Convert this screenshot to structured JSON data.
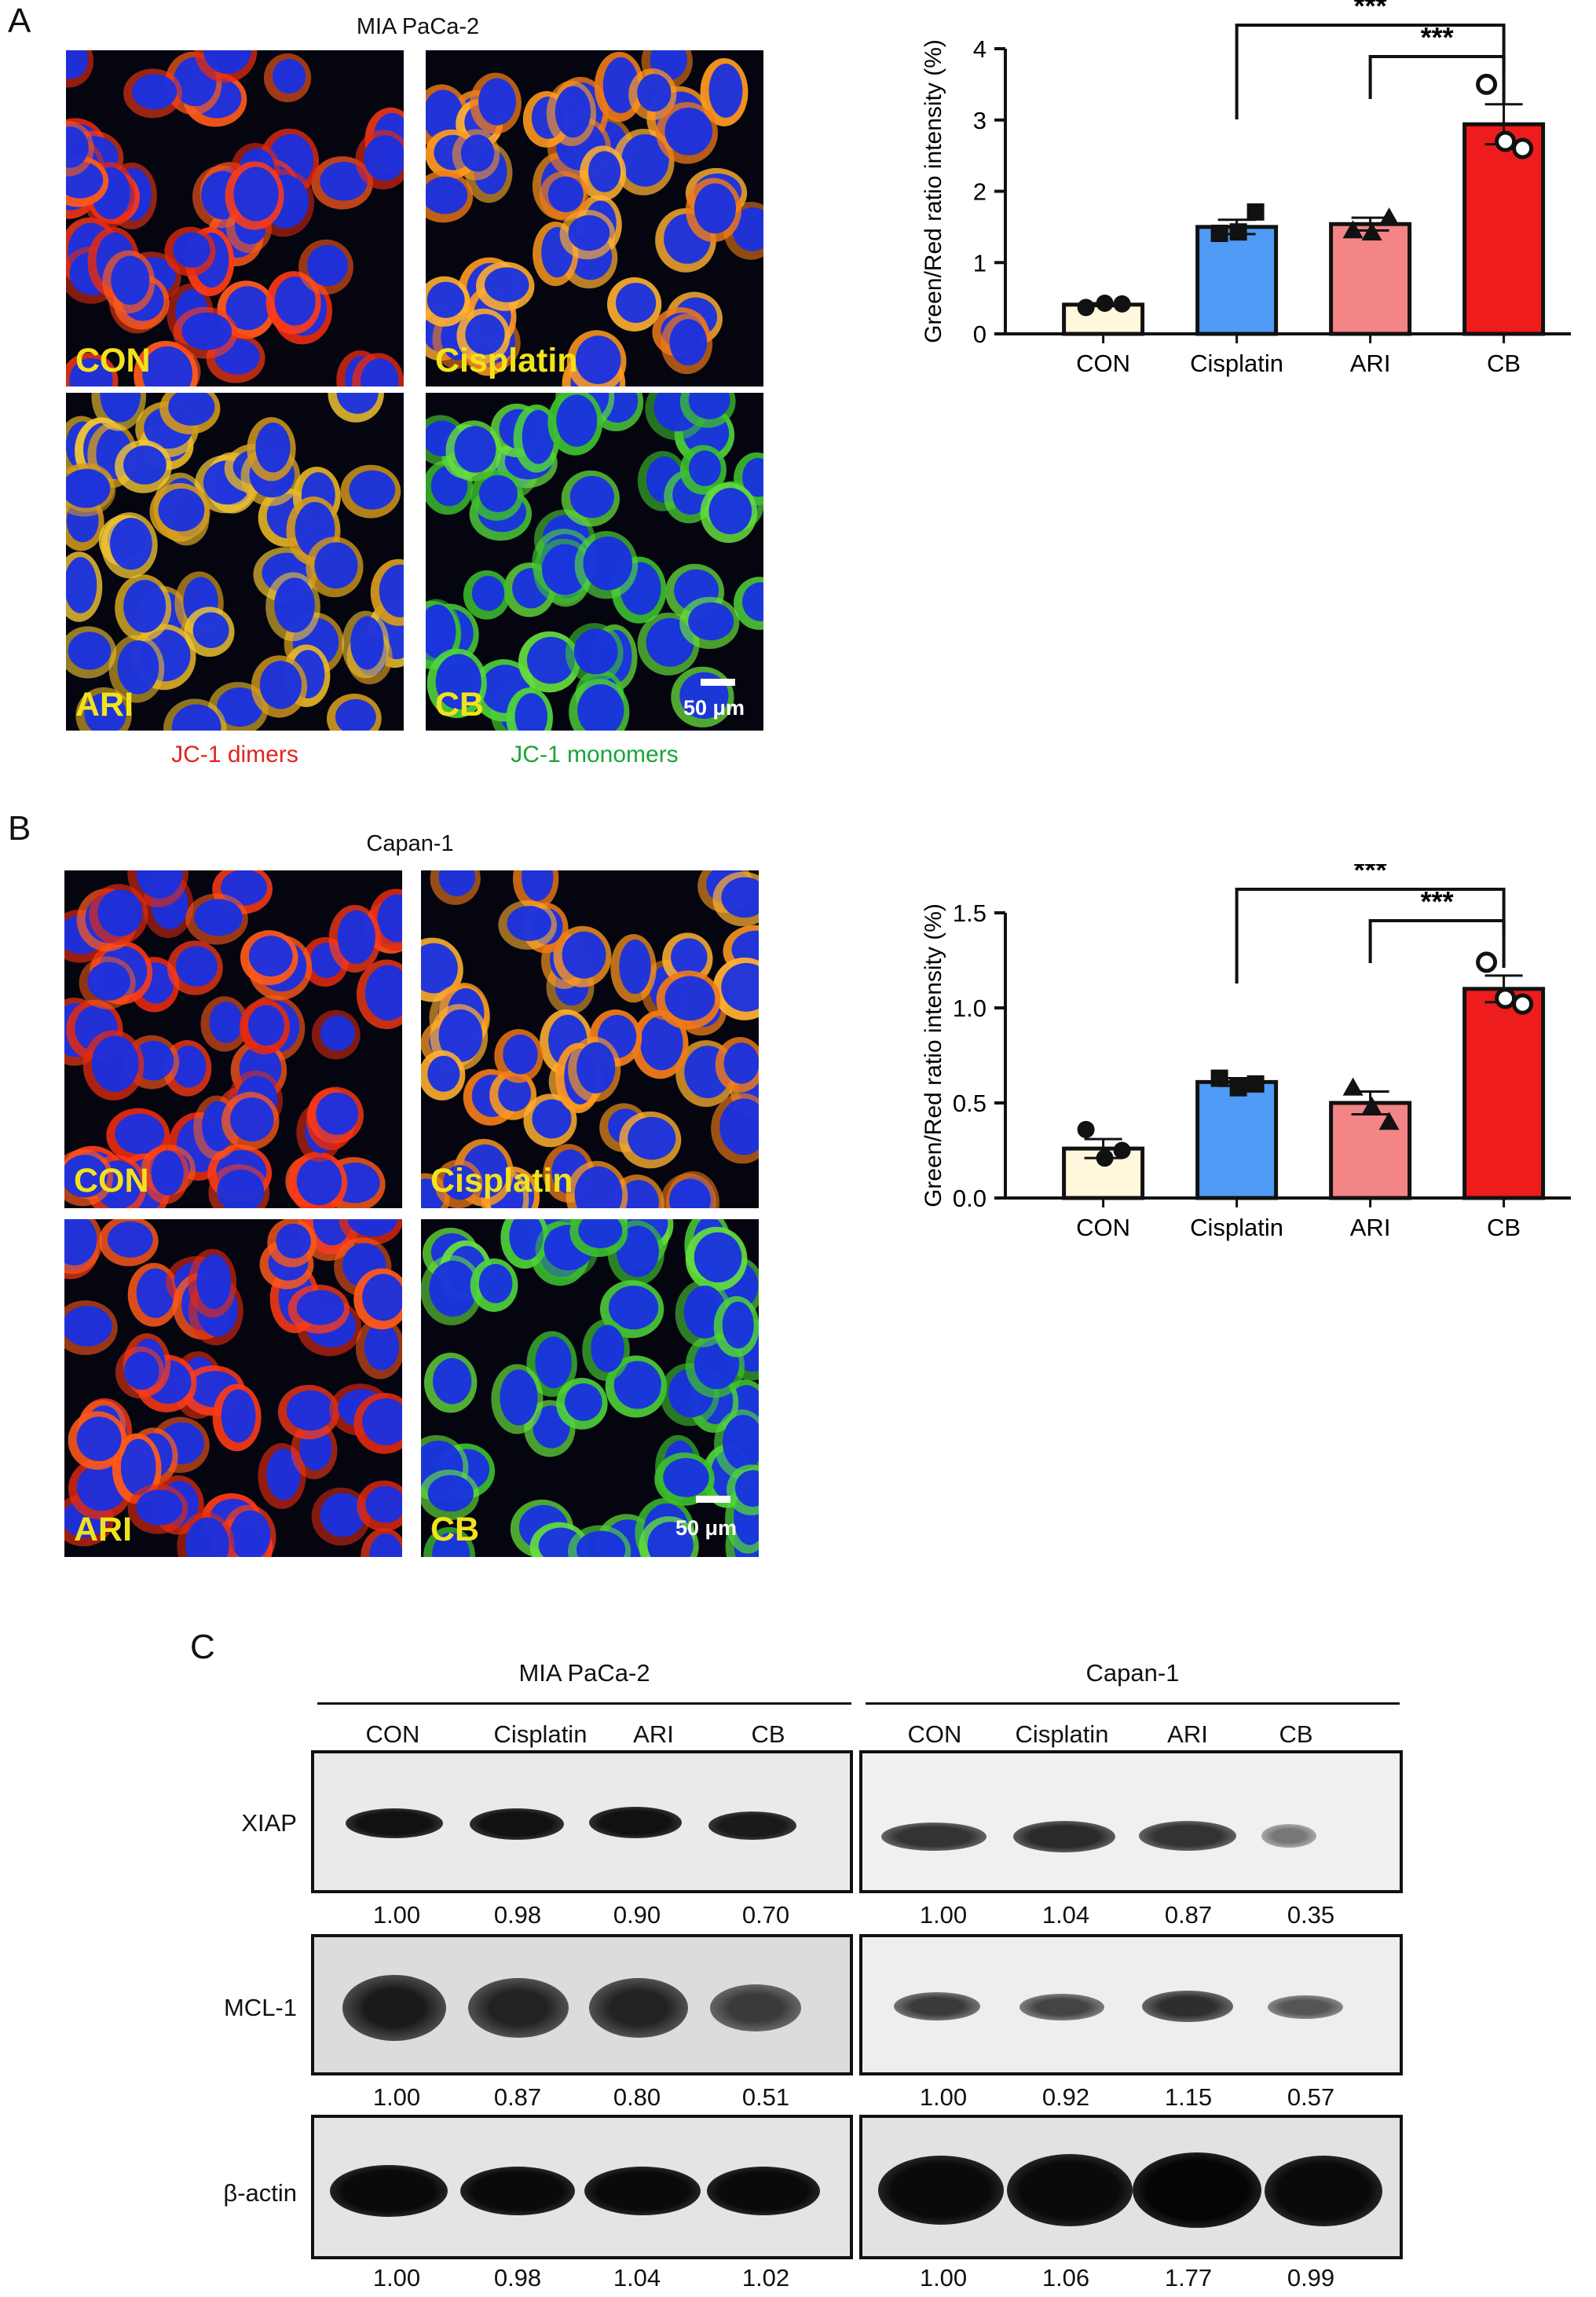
{
  "panel_a": {
    "letter": "A",
    "cell_line": "MIA PaCa-2",
    "images": [
      {
        "label": "CON",
        "stain": "red"
      },
      {
        "label": "Cisplatin",
        "stain": "orange"
      },
      {
        "label": "ARI",
        "stain": "yellow"
      },
      {
        "label": "CB",
        "stain": "green"
      }
    ],
    "scale_bar": "50 μm",
    "legend_dimers": "JC-1 dimers",
    "legend_monomers": "JC-1 monomers"
  },
  "panel_b": {
    "letter": "B",
    "cell_line": "Capan-1",
    "images": [
      {
        "label": "CON",
        "stain": "red"
      },
      {
        "label": "Cisplatin",
        "stain": "orange"
      },
      {
        "label": "ARI",
        "stain": "red"
      },
      {
        "label": "CB",
        "stain": "green"
      }
    ],
    "scale_bar": "50 μm"
  },
  "chart_data": [
    {
      "type": "bar",
      "ylabel": "Green/Red ratio intensity (%)",
      "categories": [
        "CON",
        "Cisplatin",
        "ARI",
        "CB"
      ],
      "values": [
        0.41,
        1.5,
        1.54,
        2.94
      ],
      "errors": [
        0.02,
        0.1,
        0.09,
        0.28
      ],
      "points": [
        [
          0.37,
          0.43,
          0.42
        ],
        [
          1.41,
          1.43,
          1.71
        ],
        [
          1.45,
          1.42,
          1.63
        ],
        [
          3.5,
          2.7,
          2.6
        ]
      ],
      "markers": [
        "circle-filled",
        "square-filled",
        "triangle-filled",
        "circle-open"
      ],
      "colors": [
        "#fff8dc",
        "#4f9bf5",
        "#f38587",
        "#ee1c1c"
      ],
      "ylim": [
        0,
        4
      ],
      "yticks": [
        "0",
        "1",
        "2",
        "3",
        "4"
      ],
      "significance": [
        {
          "from": "Cisplatin",
          "to": "CB",
          "label": "***"
        },
        {
          "from": "ARI",
          "to": "CB",
          "label": "***"
        }
      ]
    },
    {
      "type": "bar",
      "ylabel": "Green/Red ratio intensity (%)",
      "categories": [
        "CON",
        "Cisplatin",
        "ARI",
        "CB"
      ],
      "values": [
        0.26,
        0.61,
        0.5,
        1.1
      ],
      "errors": [
        0.05,
        0.02,
        0.06,
        0.07
      ],
      "points": [
        [
          0.36,
          0.21,
          0.25
        ],
        [
          0.63,
          0.58,
          0.6
        ],
        [
          0.58,
          0.48,
          0.4
        ],
        [
          1.24,
          1.05,
          1.02
        ]
      ],
      "markers": [
        "circle-filled",
        "square-filled",
        "triangle-filled",
        "circle-open"
      ],
      "colors": [
        "#fff8dc",
        "#4f9bf5",
        "#f38587",
        "#ee1c1c"
      ],
      "ylim": [
        0,
        1.5
      ],
      "yticks": [
        "0.0",
        "0.5",
        "1.0",
        "1.5"
      ],
      "significance": [
        {
          "from": "Cisplatin",
          "to": "CB",
          "label": "***"
        },
        {
          "from": "ARI",
          "to": "CB",
          "label": "***"
        }
      ]
    }
  ],
  "panel_c": {
    "letter": "C",
    "groups": [
      "MIA PaCa-2",
      "Capan-1"
    ],
    "lanes": [
      "CON",
      "Cisplatin",
      "ARI",
      "CB"
    ],
    "blots": [
      {
        "label": "XIAP",
        "values_left": [
          "1.00",
          "0.98",
          "0.90",
          "0.70"
        ],
        "values_right": [
          "1.00",
          "1.04",
          "0.87",
          "0.35"
        ]
      },
      {
        "label": "MCL-1",
        "values_left": [
          "1.00",
          "0.87",
          "0.80",
          "0.51"
        ],
        "values_right": [
          "1.00",
          "0.92",
          "1.15",
          "0.57"
        ]
      },
      {
        "label": "β-actin",
        "values_left": [
          "1.00",
          "0.98",
          "1.04",
          "1.02"
        ],
        "values_right": [
          "1.00",
          "1.06",
          "1.77",
          "0.99"
        ]
      }
    ]
  }
}
